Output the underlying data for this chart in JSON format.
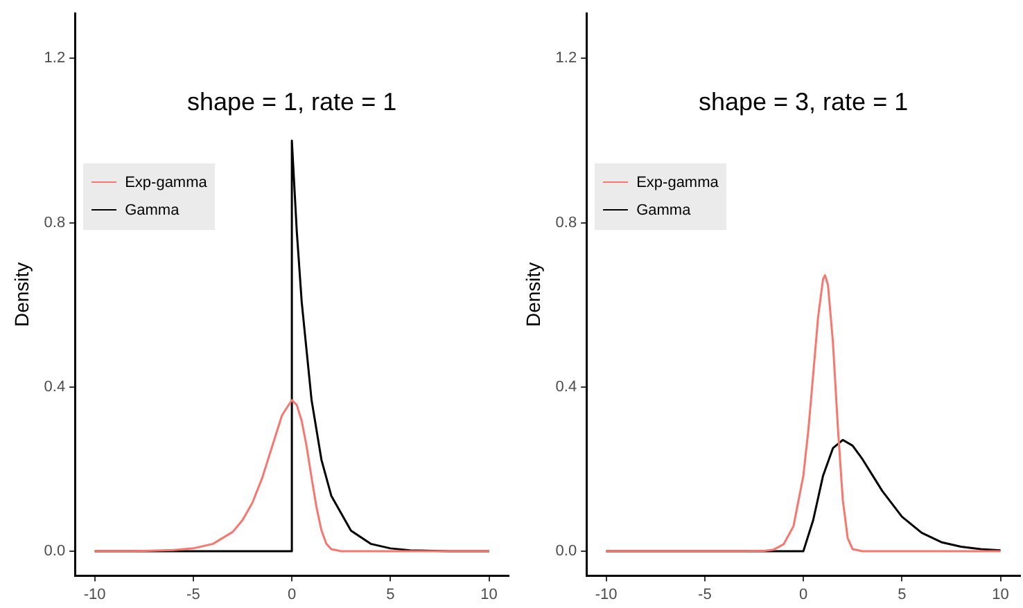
{
  "chart_data": [
    {
      "type": "line",
      "title": "shape = 1, rate = 1",
      "ylabel": "Density",
      "xlim": [
        -11,
        11
      ],
      "xticks": [
        -10,
        -5,
        0,
        5,
        10
      ],
      "ylim": [
        -0.06,
        1.31
      ],
      "yticks": [
        {
          "value": 0,
          "label": "0.0"
        },
        {
          "value": 0.4,
          "label": "0.4"
        },
        {
          "value": 0.8,
          "label": "0.8"
        },
        {
          "value": 1.2,
          "label": "1.2"
        }
      ],
      "legend": "top left",
      "grid": false,
      "series": [
        {
          "name": "Exp-gamma",
          "color": "#f8766d",
          "x": [
            -10,
            -8,
            -6,
            -5,
            -4,
            -3,
            -2.5,
            -2,
            -1.5,
            -1,
            -0.5,
            0,
            0.25,
            0.5,
            0.75,
            1,
            1.25,
            1.5,
            1.75,
            2,
            2.5,
            3,
            10
          ],
          "values": [
            0,
            0,
            0.003,
            0.007,
            0.018,
            0.047,
            0.076,
            0.118,
            0.179,
            0.255,
            0.331,
            0.368,
            0.356,
            0.317,
            0.255,
            0.179,
            0.107,
            0.051,
            0.018,
            0.005,
            0,
            0,
            0
          ]
        },
        {
          "name": "Gamma",
          "color": "#000000",
          "x": [
            -10,
            0,
            0,
            0.25,
            0.5,
            1,
            1.5,
            2,
            3,
            4,
            5,
            6,
            8,
            10
          ],
          "values": [
            0,
            0,
            1,
            0.779,
            0.607,
            0.368,
            0.223,
            0.135,
            0.05,
            0.018,
            0.007,
            0.002,
            0,
            0
          ]
        }
      ]
    },
    {
      "type": "line",
      "title": "shape = 3, rate = 1",
      "ylabel": "Density",
      "xlim": [
        -11,
        11
      ],
      "xticks": [
        -10,
        -5,
        0,
        5,
        10
      ],
      "ylim": [
        -0.06,
        1.31
      ],
      "yticks": [
        {
          "value": 0,
          "label": "0.0"
        },
        {
          "value": 0.4,
          "label": "0.4"
        },
        {
          "value": 0.8,
          "label": "0.8"
        },
        {
          "value": 1.2,
          "label": "1.2"
        }
      ],
      "legend": "top left",
      "grid": false,
      "series": [
        {
          "name": "Exp-gamma",
          "color": "#f8766d",
          "x": [
            -10,
            -3,
            -2,
            -1.5,
            -1,
            -0.5,
            0,
            0.25,
            0.5,
            0.75,
            1,
            1.1,
            1.25,
            1.5,
            1.75,
            2,
            2.25,
            2.5,
            3,
            10
          ],
          "values": [
            0,
            0,
            0.001,
            0.004,
            0.017,
            0.061,
            0.184,
            0.293,
            0.431,
            0.571,
            0.663,
            0.672,
            0.648,
            0.509,
            0.302,
            0.125,
            0.032,
            0.005,
            0,
            0
          ]
        },
        {
          "name": "Gamma",
          "color": "#000000",
          "x": [
            -10,
            0,
            0.5,
            1,
            1.5,
            2,
            2.5,
            3,
            4,
            5,
            6,
            7,
            8,
            9,
            10
          ],
          "values": [
            0,
            0,
            0.076,
            0.184,
            0.251,
            0.271,
            0.257,
            0.224,
            0.147,
            0.084,
            0.045,
            0.022,
            0.011,
            0.005,
            0.002
          ]
        }
      ]
    }
  ]
}
